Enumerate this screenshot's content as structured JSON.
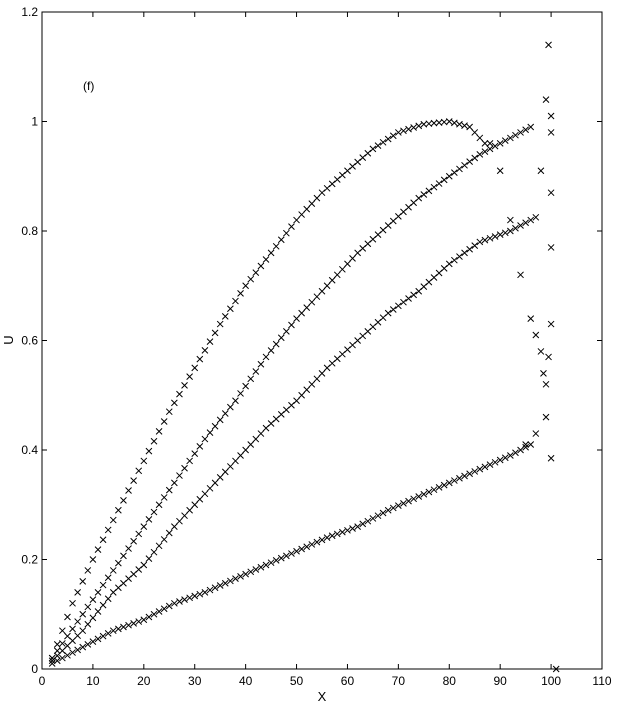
{
  "chart_data": {
    "type": "scatter",
    "panel_label": "(f)",
    "xlabel": "X",
    "ylabel": "U",
    "xlim": [
      0,
      110
    ],
    "ylim": [
      0,
      1.2
    ],
    "xticks": [
      "0",
      "10",
      "20",
      "30",
      "40",
      "50",
      "60",
      "70",
      "80",
      "90",
      "100",
      "110"
    ],
    "yticks": [
      "0",
      "0.2",
      "0.4",
      "0.6",
      "0.8",
      "1",
      "1.2"
    ],
    "grid": false,
    "marker": "x",
    "series": [
      {
        "curve": "low",
        "x": [
          2,
          8,
          14,
          20,
          26,
          32,
          38,
          44,
          50,
          56,
          62,
          68,
          74,
          80,
          86,
          92,
          96
        ],
        "values": [
          0.01,
          0.04,
          0.07,
          0.09,
          0.12,
          0.14,
          0.165,
          0.19,
          0.215,
          0.24,
          0.26,
          0.29,
          0.315,
          0.34,
          0.365,
          0.39,
          0.41
        ]
      },
      {
        "curve": "mid",
        "x": [
          2,
          8,
          14,
          20,
          26,
          32,
          38,
          44,
          50,
          56,
          62,
          68,
          74,
          80,
          86,
          92,
          97
        ],
        "values": [
          0.015,
          0.07,
          0.14,
          0.19,
          0.26,
          0.32,
          0.38,
          0.44,
          0.49,
          0.55,
          0.6,
          0.65,
          0.69,
          0.74,
          0.78,
          0.8,
          0.825
        ]
      },
      {
        "curve": "upper",
        "x": [
          2,
          8,
          14,
          20,
          26,
          32,
          38,
          44,
          50,
          56,
          62,
          68,
          74,
          80,
          86,
          92,
          96
        ],
        "values": [
          0.02,
          0.1,
          0.18,
          0.26,
          0.34,
          0.42,
          0.49,
          0.57,
          0.64,
          0.7,
          0.76,
          0.81,
          0.86,
          0.9,
          0.94,
          0.97,
          0.99
        ]
      },
      {
        "curve": "top",
        "x": [
          2,
          6,
          10,
          15,
          20,
          25,
          30,
          35,
          40,
          45,
          50,
          55,
          60,
          65,
          70,
          75,
          80,
          84,
          87
        ],
        "values": [
          0.02,
          0.12,
          0.2,
          0.29,
          0.38,
          0.47,
          0.55,
          0.63,
          0.7,
          0.76,
          0.82,
          0.87,
          0.91,
          0.95,
          0.98,
          0.995,
          1.0,
          0.99,
          0.96
        ]
      },
      {
        "curve": "tail",
        "x": [
          88,
          90,
          92,
          94,
          96,
          97,
          98,
          98.5,
          99,
          99.5,
          100,
          100,
          100,
          100,
          100,
          101,
          99.5,
          99,
          98
        ],
        "values": [
          0.96,
          0.91,
          0.82,
          0.72,
          0.64,
          0.61,
          0.58,
          0.54,
          0.52,
          0.57,
          0.63,
          0.77,
          0.87,
          0.98,
          1.01,
          0.0,
          1.14,
          1.04,
          0.91
        ]
      },
      {
        "curve": "tail2",
        "x": [
          95,
          97,
          99,
          100
        ],
        "values": [
          0.41,
          0.43,
          0.46,
          0.385
        ]
      }
    ]
  }
}
